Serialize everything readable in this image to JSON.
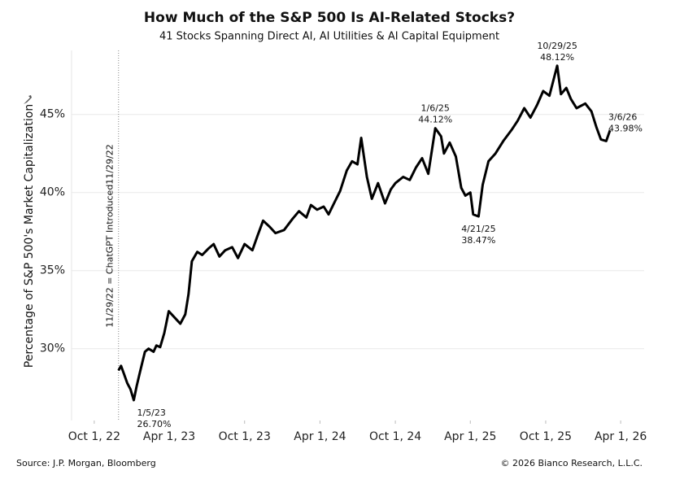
{
  "chart_data": {
    "type": "line",
    "title": "How Much of the S&P 500 Is AI-Related Stocks?",
    "subtitle": "41 Stocks Spanning Direct AI, AI Utilities & AI Capital Equipment",
    "y_label": "Percentage of S&P 500's Market Capitalization",
    "source": "Source: J.P. Morgan, Bloomberg",
    "copyright": "© 2026 Bianco Research, L.L.C.",
    "xlim": [
      "2022-08-07",
      "2026-05-28"
    ],
    "xticks": [
      {
        "value": "2022-10-01",
        "label": "Oct 1, 22"
      },
      {
        "value": "2023-04-01",
        "label": "Apr 1, 23"
      },
      {
        "value": "2023-10-01",
        "label": "Oct 1, 23"
      },
      {
        "value": "2024-04-01",
        "label": "Apr 1, 24"
      },
      {
        "value": "2024-10-01",
        "label": "Oct 1, 24"
      },
      {
        "value": "2025-04-01",
        "label": "Apr 1, 25"
      },
      {
        "value": "2025-10-01",
        "label": "Oct 1, 25"
      },
      {
        "value": "2026-04-01",
        "label": "Apr 1, 26"
      }
    ],
    "ylim": [
      25.4,
      49.1
    ],
    "yticks": [
      {
        "value": 30,
        "label": "30%"
      },
      {
        "value": 35,
        "label": "35%"
      },
      {
        "value": 40,
        "label": "40%"
      },
      {
        "value": 45,
        "label": "45%"
      }
    ],
    "grid": true,
    "event": {
      "x": "2022-11-29",
      "label": "11/29/22 = ChatGPT Introduced11/29/22"
    },
    "x": [
      "2022-11-29",
      "2022-12-05",
      "2022-12-12",
      "2022-12-20",
      "2022-12-28",
      "2023-01-05",
      "2023-01-12",
      "2023-01-20",
      "2023-02-01",
      "2023-02-10",
      "2023-02-22",
      "2023-03-01",
      "2023-03-10",
      "2023-03-20",
      "2023-03-31",
      "2023-04-14",
      "2023-04-28",
      "2023-05-10",
      "2023-05-18",
      "2023-05-26",
      "2023-06-08",
      "2023-06-20",
      "2023-07-05",
      "2023-07-18",
      "2023-08-01",
      "2023-08-15",
      "2023-09-01",
      "2023-09-15",
      "2023-10-01",
      "2023-10-20",
      "2023-11-01",
      "2023-11-15",
      "2023-12-01",
      "2023-12-15",
      "2024-01-05",
      "2024-01-25",
      "2024-02-10",
      "2024-02-28",
      "2024-03-10",
      "2024-03-25",
      "2024-04-10",
      "2024-04-22",
      "2024-05-05",
      "2024-05-20",
      "2024-06-05",
      "2024-06-18",
      "2024-07-01",
      "2024-07-10",
      "2024-07-24",
      "2024-08-05",
      "2024-08-20",
      "2024-09-06",
      "2024-09-20",
      "2024-10-01",
      "2024-10-20",
      "2024-11-05",
      "2024-11-20",
      "2024-12-05",
      "2024-12-20",
      "2025-01-06",
      "2025-01-20",
      "2025-01-27",
      "2025-02-10",
      "2025-02-25",
      "2025-03-10",
      "2025-03-20",
      "2025-04-01",
      "2025-04-08",
      "2025-04-21",
      "2025-05-01",
      "2025-05-15",
      "2025-06-01",
      "2025-06-20",
      "2025-07-10",
      "2025-07-25",
      "2025-08-10",
      "2025-08-25",
      "2025-09-10",
      "2025-09-25",
      "2025-10-10",
      "2025-10-29",
      "2025-11-07",
      "2025-11-20",
      "2025-12-01",
      "2025-12-15",
      "2026-01-05",
      "2026-01-20",
      "2026-02-01",
      "2026-02-12",
      "2026-02-25",
      "2026-03-06"
    ],
    "series": [
      {
        "color": "#000000",
        "values": [
          28.6,
          28.9,
          28.4,
          27.8,
          27.4,
          26.7,
          27.6,
          28.5,
          29.8,
          30.0,
          29.8,
          30.2,
          30.1,
          31.0,
          32.4,
          32.0,
          31.6,
          32.2,
          33.5,
          35.6,
          36.2,
          36.0,
          36.4,
          36.7,
          35.9,
          36.3,
          36.5,
          35.8,
          36.7,
          36.3,
          37.2,
          38.2,
          37.8,
          37.4,
          37.6,
          38.3,
          38.8,
          38.4,
          39.2,
          38.9,
          39.1,
          38.6,
          39.3,
          40.1,
          41.4,
          42.0,
          41.8,
          43.5,
          41.0,
          39.6,
          40.6,
          39.3,
          40.2,
          40.6,
          41.0,
          40.8,
          41.6,
          42.2,
          41.2,
          44.12,
          43.6,
          42.5,
          43.2,
          42.3,
          40.3,
          39.8,
          40.0,
          38.6,
          38.47,
          40.5,
          42.0,
          42.5,
          43.3,
          44.0,
          44.6,
          45.4,
          44.8,
          45.6,
          46.5,
          46.2,
          48.12,
          46.3,
          46.7,
          46.0,
          45.4,
          45.7,
          45.2,
          44.2,
          43.4,
          43.3,
          43.98
        ]
      }
    ],
    "annotations": [
      {
        "x": "2023-01-05",
        "date_label": "1/5/23",
        "value": 26.7,
        "label": "26.70%"
      },
      {
        "x": "2025-01-06",
        "date_label": "1/6/25",
        "value": 44.12,
        "label": "44.12%"
      },
      {
        "x": "2025-04-21",
        "date_label": "4/21/25",
        "value": 38.47,
        "label": "38.47%"
      },
      {
        "x": "2025-10-29",
        "date_label": "10/29/25",
        "value": 48.12,
        "label": "48.12%"
      },
      {
        "x": "2026-03-06",
        "date_label": "3/6/26",
        "value": 43.98,
        "label": "43.98%"
      }
    ]
  }
}
